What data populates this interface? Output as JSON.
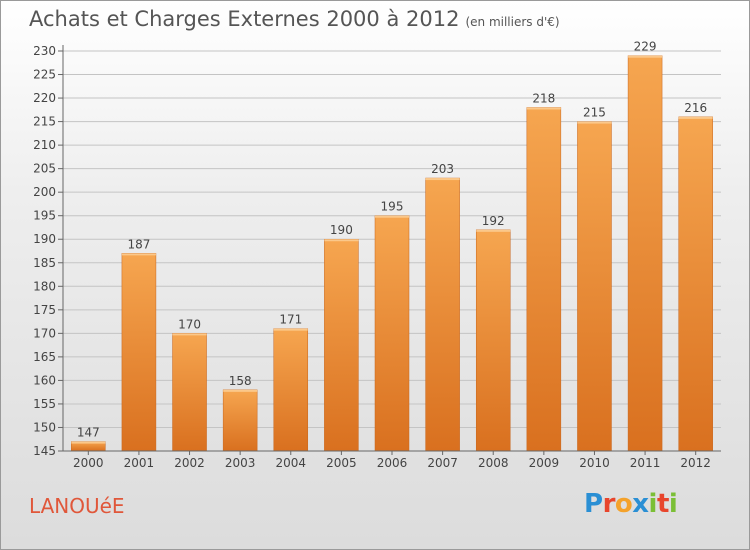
{
  "header": {
    "title": "Achats et Charges Externes 2000 à 2012",
    "subtitle": "(en milliers d'€)"
  },
  "footer": {
    "commune": "LANOUéE",
    "logo_letters": [
      "P",
      "r",
      "o",
      "x",
      "i",
      "t",
      "i"
    ],
    "logo_colors": [
      "#2a8fd4",
      "#e8452c",
      "#f4a22b",
      "#2a8fd4",
      "#7bbf36",
      "#e8452c",
      "#7bbf36"
    ]
  },
  "chart_data": {
    "type": "bar",
    "categories": [
      "2000",
      "2001",
      "2002",
      "2003",
      "2004",
      "2005",
      "2006",
      "2007",
      "2008",
      "2009",
      "2010",
      "2011",
      "2012"
    ],
    "values": [
      147,
      187,
      170,
      158,
      171,
      190,
      195,
      203,
      192,
      218,
      215,
      229,
      216
    ],
    "data_labels": [
      "147",
      "187",
      "170",
      "158",
      "171",
      "190",
      "195",
      "203",
      "192",
      "218",
      "215",
      "229",
      "216"
    ],
    "yticks": [
      "145",
      "150",
      "155",
      "160",
      "165",
      "170",
      "175",
      "180",
      "185",
      "190",
      "195",
      "200",
      "205",
      "210",
      "215",
      "220",
      "225",
      "230"
    ],
    "ylim": [
      145,
      230
    ],
    "grid": true,
    "bar_color_top": "#f6a650",
    "bar_color_bottom": "#d9701f",
    "legend": "none"
  }
}
